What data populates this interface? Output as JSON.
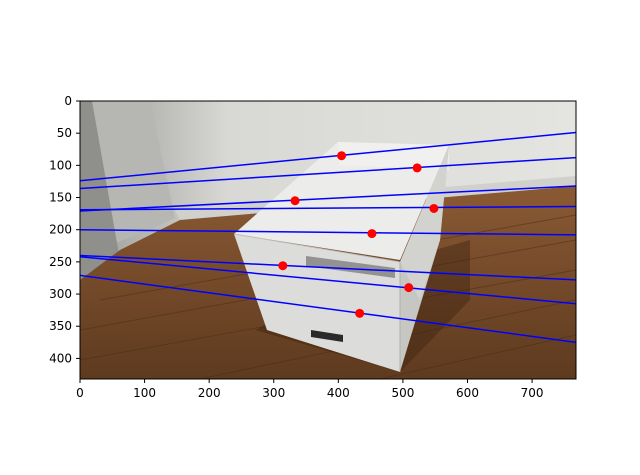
{
  "chart_data": {
    "type": "scatter",
    "title": "",
    "xlabel": "",
    "ylabel": "",
    "xlim": [
      0,
      768
    ],
    "ylim": [
      432,
      0
    ],
    "y_axis_inverted": true,
    "background": "photograph of a white cardboard box on a wooden floor against a white wall",
    "xticks": [
      0,
      100,
      200,
      300,
      400,
      500,
      600,
      700
    ],
    "yticks": [
      0,
      50,
      100,
      150,
      200,
      250,
      300,
      350,
      400
    ],
    "line_color": "#0000ff",
    "point_color": "#ff0000",
    "lines": [
      {
        "x": [
          0,
          768
        ],
        "y": [
          124,
          49
        ]
      },
      {
        "x": [
          0,
          768
        ],
        "y": [
          136,
          88
        ]
      },
      {
        "x": [
          0,
          768
        ],
        "y": [
          171,
          132
        ]
      },
      {
        "x": [
          0,
          768
        ],
        "y": [
          169,
          164
        ]
      },
      {
        "x": [
          0,
          768
        ],
        "y": [
          200,
          208
        ]
      },
      {
        "x": [
          0,
          768
        ],
        "y": [
          240,
          278
        ]
      },
      {
        "x": [
          0,
          768
        ],
        "y": [
          242,
          315
        ]
      },
      {
        "x": [
          0,
          768
        ],
        "y": [
          271,
          375
        ]
      }
    ],
    "points": [
      {
        "x": 405,
        "y": 85
      },
      {
        "x": 522,
        "y": 104
      },
      {
        "x": 333,
        "y": 155
      },
      {
        "x": 548,
        "y": 167
      },
      {
        "x": 452,
        "y": 206
      },
      {
        "x": 314,
        "y": 256
      },
      {
        "x": 509,
        "y": 290
      },
      {
        "x": 433,
        "y": 330
      }
    ]
  }
}
